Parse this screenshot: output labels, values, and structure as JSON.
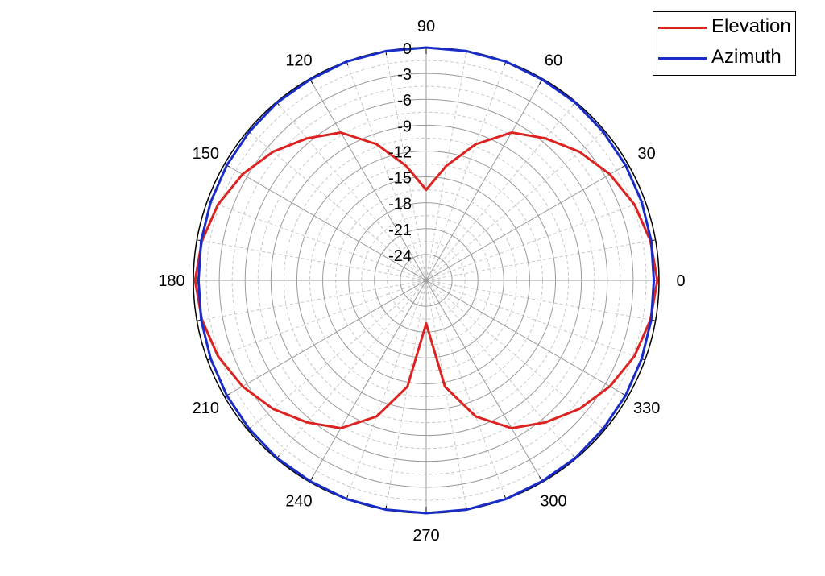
{
  "chart_data": {
    "type": "polar-line",
    "angle_ticks": [
      "0",
      "30",
      "60",
      "90",
      "120",
      "150",
      "180",
      "210",
      "240",
      "270",
      "300",
      "330"
    ],
    "radial_ticks": [
      "0",
      "-3",
      "-6",
      "-9",
      "-12",
      "-15",
      "-18",
      "-21",
      "-24"
    ],
    "rlim": [
      -27,
      0
    ],
    "grid": true,
    "legend": "top-right",
    "series": [
      {
        "name": "Elevation",
        "color": "#dd2222",
        "points": [
          [
            0,
            -0.2
          ],
          [
            10,
            -0.6
          ],
          [
            20,
            -1.3
          ],
          [
            30,
            -2.4
          ],
          [
            40,
            -3.8
          ],
          [
            50,
            -5.5
          ],
          [
            60,
            -7.2
          ],
          [
            70,
            -10.2
          ],
          [
            80,
            -13.5
          ],
          [
            90,
            -16.5
          ],
          [
            100,
            -13.5
          ],
          [
            110,
            -10.2
          ],
          [
            120,
            -7.2
          ],
          [
            130,
            -5.5
          ],
          [
            140,
            -3.8
          ],
          [
            150,
            -2.4
          ],
          [
            160,
            -1.3
          ],
          [
            170,
            -0.6
          ],
          [
            180,
            -0.2
          ],
          [
            190,
            -0.6
          ],
          [
            200,
            -1.3
          ],
          [
            210,
            -2.4
          ],
          [
            220,
            -3.8
          ],
          [
            230,
            -5.5
          ],
          [
            240,
            -7.2
          ],
          [
            250,
            -10.2
          ],
          [
            260,
            -14.5
          ],
          [
            270,
            -22.0
          ],
          [
            280,
            -14.5
          ],
          [
            290,
            -10.2
          ],
          [
            300,
            -7.2
          ],
          [
            310,
            -5.5
          ],
          [
            320,
            -3.8
          ],
          [
            330,
            -2.4
          ],
          [
            340,
            -1.3
          ],
          [
            350,
            -0.6
          ],
          [
            360,
            -0.2
          ]
        ]
      },
      {
        "name": "Azimuth",
        "color": "#1a2cc8",
        "points": [
          [
            0,
            -0.6
          ],
          [
            10,
            -0.5
          ],
          [
            20,
            -0.4
          ],
          [
            30,
            -0.3
          ],
          [
            40,
            -0.2
          ],
          [
            50,
            -0.1
          ],
          [
            60,
            -0.1
          ],
          [
            70,
            0.0
          ],
          [
            80,
            0.0
          ],
          [
            90,
            0.0
          ],
          [
            100,
            0.0
          ],
          [
            110,
            0.0
          ],
          [
            120,
            -0.1
          ],
          [
            130,
            -0.1
          ],
          [
            140,
            -0.2
          ],
          [
            150,
            -0.3
          ],
          [
            160,
            -0.4
          ],
          [
            170,
            -0.5
          ],
          [
            180,
            -0.6
          ],
          [
            190,
            -0.5
          ],
          [
            200,
            -0.4
          ],
          [
            210,
            -0.3
          ],
          [
            220,
            -0.2
          ],
          [
            230,
            -0.1
          ],
          [
            240,
            -0.1
          ],
          [
            250,
            0.0
          ],
          [
            260,
            0.0
          ],
          [
            270,
            0.0
          ],
          [
            280,
            0.0
          ],
          [
            290,
            0.0
          ],
          [
            300,
            -0.1
          ],
          [
            310,
            -0.1
          ],
          [
            320,
            -0.2
          ],
          [
            330,
            -0.3
          ],
          [
            340,
            -0.4
          ],
          [
            350,
            -0.5
          ],
          [
            360,
            -0.6
          ]
        ]
      }
    ]
  }
}
